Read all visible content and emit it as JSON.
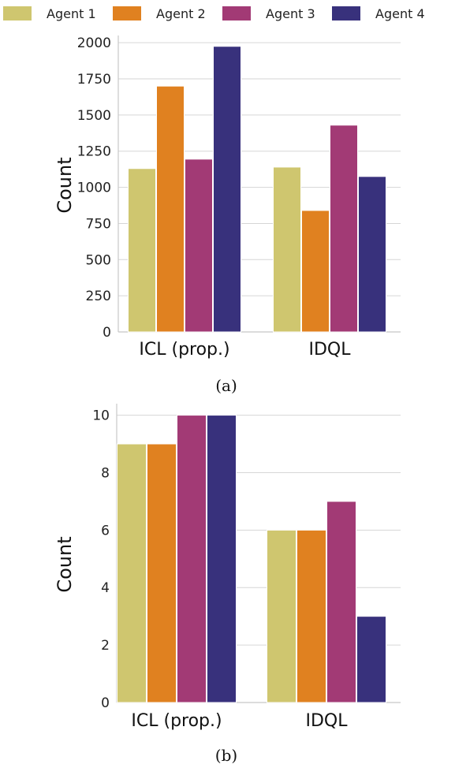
{
  "legend": [
    "Agent 1",
    "Agent 2",
    "Agent 3",
    "Agent 4"
  ],
  "colors": [
    "#cfc66f",
    "#e08120",
    "#a23a75",
    "#38317c"
  ],
  "chart_data": [
    {
      "type": "bar",
      "caption": "(a)",
      "categories": [
        "ICL (prop.)",
        "IDQL"
      ],
      "ylabel": "Count",
      "ylim": [
        0,
        2050
      ],
      "yticks": [
        0,
        250,
        500,
        750,
        1000,
        1250,
        1500,
        1750,
        2000
      ],
      "grid": true,
      "legend": "top",
      "series": [
        {
          "name": "Agent 1",
          "values": [
            1130,
            1140
          ]
        },
        {
          "name": "Agent 2",
          "values": [
            1700,
            840
          ]
        },
        {
          "name": "Agent 3",
          "values": [
            1195,
            1430
          ]
        },
        {
          "name": "Agent 4",
          "values": [
            1975,
            1075
          ]
        }
      ]
    },
    {
      "type": "bar",
      "caption": "(b)",
      "categories": [
        "ICL (prop.)",
        "IDQL"
      ],
      "ylabel": "Count",
      "ylim": [
        0,
        10.4
      ],
      "yticks": [
        0,
        2,
        4,
        6,
        8,
        10
      ],
      "grid": true,
      "series": [
        {
          "name": "Agent 1",
          "values": [
            9,
            6
          ]
        },
        {
          "name": "Agent 2",
          "values": [
            9,
            6
          ]
        },
        {
          "name": "Agent 3",
          "values": [
            10,
            7
          ]
        },
        {
          "name": "Agent 4",
          "values": [
            10,
            3
          ]
        }
      ]
    }
  ]
}
